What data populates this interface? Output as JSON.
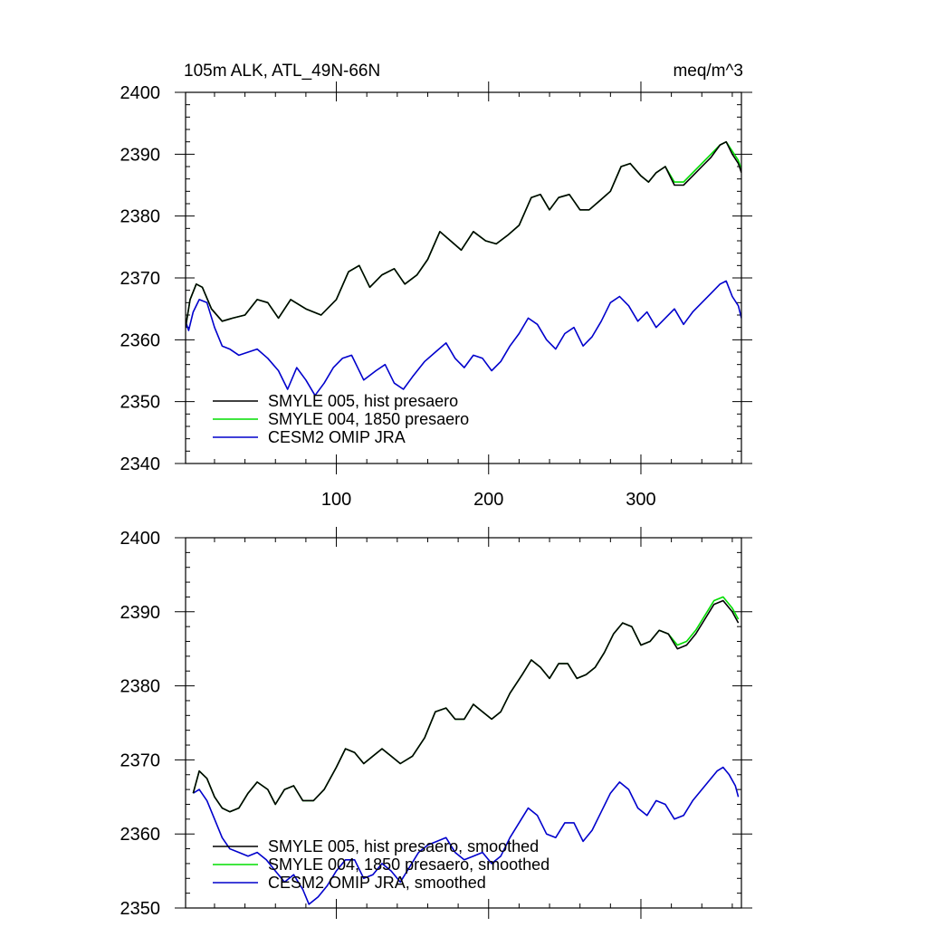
{
  "chart_data": [
    {
      "type": "line",
      "title_left": "105m ALK, ATL_49N-66N",
      "title_right": "meq/m^3",
      "xlabel": "",
      "ylabel": "",
      "xlim": [
        1,
        366
      ],
      "ylim": [
        2340,
        2400
      ],
      "x_ticks": [
        100,
        200,
        300
      ],
      "y_ticks": [
        2340,
        2350,
        2360,
        2370,
        2380,
        2390,
        2400
      ],
      "legend_position": "bottom-left",
      "grid": false,
      "series": [
        {
          "name": "SMYLE 005, hist presaero",
          "color": "#000000",
          "x": [
            1,
            4,
            8,
            12,
            18,
            25,
            32,
            40,
            48,
            55,
            62,
            70,
            80,
            90,
            100,
            108,
            115,
            122,
            130,
            138,
            145,
            153,
            160,
            168,
            175,
            182,
            190,
            198,
            205,
            213,
            220,
            228,
            234,
            240,
            246,
            253,
            260,
            266,
            273,
            280,
            287,
            293,
            300,
            305,
            310,
            316,
            322,
            328,
            334,
            340,
            346,
            352,
            356,
            360,
            364,
            366
          ],
          "y": [
            2362.0,
            2366.5,
            2369.0,
            2368.5,
            2365.0,
            2363.0,
            2363.5,
            2364.0,
            2366.5,
            2366.0,
            2363.5,
            2366.5,
            2365.0,
            2364.0,
            2366.5,
            2371.0,
            2372.0,
            2368.5,
            2370.5,
            2371.5,
            2369.0,
            2370.5,
            2373.0,
            2377.5,
            2376.0,
            2374.5,
            2377.5,
            2376.0,
            2375.5,
            2377.0,
            2378.5,
            2383.0,
            2383.5,
            2381.0,
            2383.0,
            2383.5,
            2381.0,
            2381.0,
            2382.5,
            2384.0,
            2388.0,
            2388.5,
            2386.5,
            2385.5,
            2387.0,
            2388.0,
            2385.0,
            2385.0,
            2386.5,
            2388.0,
            2389.5,
            2391.5,
            2392.0,
            2390.0,
            2388.5,
            2387.0
          ]
        },
        {
          "name": "SMYLE 004, 1850 presaero",
          "color": "#00dd00",
          "x": [
            1,
            4,
            8,
            12,
            18,
            25,
            32,
            40,
            48,
            55,
            62,
            70,
            80,
            90,
            100,
            108,
            115,
            122,
            130,
            138,
            145,
            153,
            160,
            168,
            175,
            182,
            190,
            198,
            205,
            213,
            220,
            228,
            234,
            240,
            246,
            253,
            260,
            266,
            273,
            280,
            287,
            293,
            300,
            305,
            310,
            316,
            322,
            328,
            334,
            340,
            346,
            352,
            356,
            360,
            364,
            366
          ],
          "y": [
            2362.0,
            2366.5,
            2369.0,
            2368.5,
            2365.0,
            2363.0,
            2363.5,
            2364.0,
            2366.5,
            2366.0,
            2363.5,
            2366.5,
            2365.0,
            2364.0,
            2366.5,
            2371.0,
            2372.0,
            2368.5,
            2370.5,
            2371.5,
            2369.0,
            2370.5,
            2373.0,
            2377.5,
            2376.0,
            2374.5,
            2377.5,
            2376.0,
            2375.5,
            2377.0,
            2378.5,
            2383.0,
            2383.5,
            2381.0,
            2383.0,
            2383.5,
            2381.0,
            2381.0,
            2382.5,
            2384.0,
            2388.0,
            2388.5,
            2386.5,
            2385.5,
            2387.0,
            2388.0,
            2385.5,
            2385.5,
            2387.0,
            2388.5,
            2390.0,
            2391.5,
            2392.0,
            2390.5,
            2389.0,
            2387.5
          ]
        },
        {
          "name": "CESM2 OMIP JRA",
          "color": "#0000cc",
          "x": [
            1,
            3,
            6,
            10,
            15,
            20,
            25,
            30,
            36,
            42,
            48,
            55,
            62,
            68,
            74,
            80,
            86,
            92,
            98,
            104,
            110,
            118,
            126,
            132,
            138,
            144,
            150,
            158,
            165,
            172,
            178,
            184,
            190,
            196,
            202,
            208,
            214,
            220,
            226,
            232,
            238,
            244,
            250,
            256,
            262,
            268,
            274,
            280,
            286,
            292,
            298,
            304,
            310,
            316,
            322,
            328,
            334,
            340,
            346,
            352,
            356,
            360,
            364,
            366
          ],
          "y": [
            2363.0,
            2361.5,
            2364.5,
            2366.5,
            2366.0,
            2362.0,
            2359.0,
            2358.5,
            2357.5,
            2358.0,
            2358.5,
            2357.0,
            2355.0,
            2352.0,
            2355.5,
            2353.5,
            2351.0,
            2353.0,
            2355.5,
            2357.0,
            2357.5,
            2353.5,
            2355.0,
            2356.0,
            2353.0,
            2352.0,
            2354.0,
            2356.5,
            2358.0,
            2359.5,
            2357.0,
            2355.5,
            2357.5,
            2357.0,
            2355.0,
            2356.5,
            2359.0,
            2361.0,
            2363.5,
            2362.5,
            2360.0,
            2358.5,
            2361.0,
            2362.0,
            2359.0,
            2360.5,
            2363.0,
            2366.0,
            2367.0,
            2365.5,
            2363.0,
            2364.5,
            2362.0,
            2363.5,
            2365.0,
            2362.5,
            2364.5,
            2366.0,
            2367.5,
            2369.0,
            2369.5,
            2367.0,
            2365.5,
            2363.5
          ]
        }
      ]
    },
    {
      "type": "line",
      "xlabel": "",
      "ylabel": "",
      "xlim": [
        1,
        366
      ],
      "ylim": [
        2350,
        2400
      ],
      "x_ticks": [
        100,
        200,
        300
      ],
      "y_ticks": [
        2350,
        2360,
        2370,
        2380,
        2390,
        2400
      ],
      "legend_position": "bottom-left",
      "grid": false,
      "series": [
        {
          "name": "SMYLE 005, hist presaero, smoothed",
          "color": "#000000",
          "x": [
            6,
            10,
            15,
            20,
            25,
            30,
            36,
            42,
            48,
            55,
            60,
            66,
            72,
            78,
            85,
            92,
            100,
            106,
            112,
            118,
            124,
            130,
            136,
            142,
            150,
            158,
            165,
            172,
            178,
            184,
            190,
            196,
            202,
            208,
            214,
            222,
            228,
            234,
            240,
            246,
            252,
            258,
            264,
            270,
            276,
            282,
            288,
            294,
            300,
            306,
            312,
            318,
            324,
            330,
            336,
            342,
            348,
            354,
            360,
            364
          ],
          "y": [
            2365.5,
            2368.5,
            2367.5,
            2365.0,
            2363.5,
            2363.0,
            2363.5,
            2365.5,
            2367.0,
            2366.0,
            2364.0,
            2366.0,
            2366.5,
            2364.5,
            2364.5,
            2366.0,
            2369.0,
            2371.5,
            2371.0,
            2369.5,
            2370.5,
            2371.5,
            2370.5,
            2369.5,
            2370.5,
            2373.0,
            2376.5,
            2377.0,
            2375.5,
            2375.5,
            2377.5,
            2376.5,
            2375.5,
            2376.5,
            2379.0,
            2381.5,
            2383.5,
            2382.5,
            2381.0,
            2383.0,
            2383.0,
            2381.0,
            2381.5,
            2382.5,
            2384.5,
            2387.0,
            2388.5,
            2388.0,
            2385.5,
            2386.0,
            2387.5,
            2387.0,
            2385.0,
            2385.5,
            2387.0,
            2389.0,
            2391.0,
            2391.5,
            2390.0,
            2388.5
          ]
        },
        {
          "name": "SMYLE 004, 1850 presaero, smoothed",
          "color": "#00dd00",
          "x": [
            6,
            10,
            15,
            20,
            25,
            30,
            36,
            42,
            48,
            55,
            60,
            66,
            72,
            78,
            85,
            92,
            100,
            106,
            112,
            118,
            124,
            130,
            136,
            142,
            150,
            158,
            165,
            172,
            178,
            184,
            190,
            196,
            202,
            208,
            214,
            222,
            228,
            234,
            240,
            246,
            252,
            258,
            264,
            270,
            276,
            282,
            288,
            294,
            300,
            306,
            312,
            318,
            324,
            330,
            336,
            342,
            348,
            354,
            360,
            364
          ],
          "y": [
            2365.5,
            2368.5,
            2367.5,
            2365.0,
            2363.5,
            2363.0,
            2363.5,
            2365.5,
            2367.0,
            2366.0,
            2364.0,
            2366.0,
            2366.5,
            2364.5,
            2364.5,
            2366.0,
            2369.0,
            2371.5,
            2371.0,
            2369.5,
            2370.5,
            2371.5,
            2370.5,
            2369.5,
            2370.5,
            2373.0,
            2376.5,
            2377.0,
            2375.5,
            2375.5,
            2377.5,
            2376.5,
            2375.5,
            2376.5,
            2379.0,
            2381.5,
            2383.5,
            2382.5,
            2381.0,
            2383.0,
            2383.0,
            2381.0,
            2381.5,
            2382.5,
            2384.5,
            2387.0,
            2388.5,
            2388.0,
            2385.5,
            2386.0,
            2387.5,
            2387.0,
            2385.5,
            2386.0,
            2387.5,
            2389.5,
            2391.5,
            2392.0,
            2390.5,
            2389.0
          ]
        },
        {
          "name": "CESM2 OMIP JRA, smoothed",
          "color": "#0000cc",
          "x": [
            6,
            10,
            15,
            20,
            25,
            30,
            36,
            42,
            48,
            54,
            60,
            66,
            72,
            78,
            82,
            88,
            94,
            100,
            106,
            112,
            118,
            124,
            130,
            136,
            142,
            148,
            154,
            160,
            166,
            172,
            178,
            184,
            190,
            196,
            202,
            208,
            214,
            220,
            226,
            232,
            238,
            244,
            250,
            256,
            262,
            268,
            274,
            280,
            286,
            292,
            298,
            304,
            310,
            316,
            322,
            328,
            334,
            340,
            346,
            350,
            354,
            358,
            362,
            364
          ],
          "y": [
            2365.5,
            2366.0,
            2364.5,
            2362.0,
            2359.5,
            2358.0,
            2357.5,
            2357.0,
            2357.5,
            2356.5,
            2355.0,
            2353.5,
            2354.5,
            2352.5,
            2350.5,
            2351.5,
            2353.0,
            2355.0,
            2356.5,
            2356.5,
            2354.0,
            2354.5,
            2356.0,
            2355.0,
            2353.5,
            2355.5,
            2357.5,
            2358.5,
            2359.0,
            2359.5,
            2357.5,
            2356.5,
            2357.0,
            2357.5,
            2356.0,
            2357.0,
            2359.5,
            2361.5,
            2363.5,
            2362.5,
            2360.0,
            2359.5,
            2361.5,
            2361.5,
            2359.0,
            2360.5,
            2363.0,
            2365.5,
            2367.0,
            2366.0,
            2363.5,
            2362.5,
            2364.5,
            2364.0,
            2362.0,
            2362.5,
            2364.5,
            2366.0,
            2367.5,
            2368.5,
            2369.0,
            2368.0,
            2366.5,
            2365.0
          ]
        }
      ]
    }
  ]
}
